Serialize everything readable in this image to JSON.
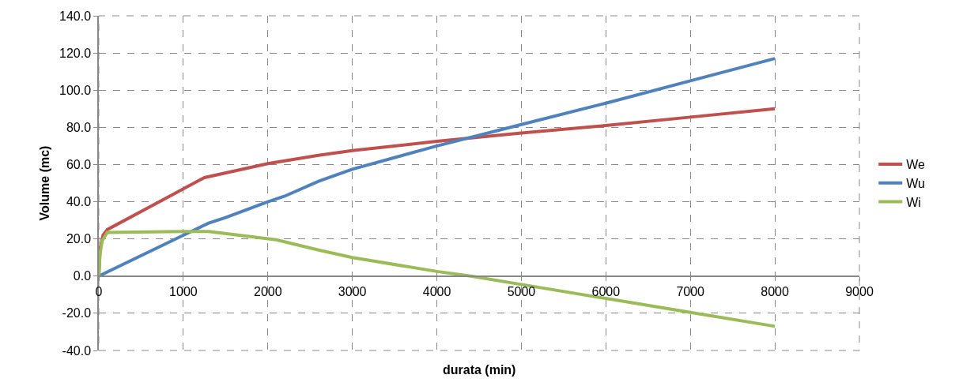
{
  "chart_data": {
    "type": "line",
    "xlabel": "durata (min)",
    "ylabel": "Volume (mc)",
    "xlim": [
      0,
      9000
    ],
    "xticks": [
      0,
      1000,
      2000,
      3000,
      4000,
      5000,
      6000,
      7000,
      8000,
      9000
    ],
    "ylim": [
      -40,
      140
    ],
    "yticks": [
      {
        "value": -40,
        "label": "-40.0"
      },
      {
        "value": -20,
        "label": "-20.0"
      },
      {
        "value": 0,
        "label": "0.0"
      },
      {
        "value": 20,
        "label": "20.0"
      },
      {
        "value": 40,
        "label": "40.0"
      },
      {
        "value": 60,
        "label": "60.0"
      },
      {
        "value": 80,
        "label": "80.0"
      },
      {
        "value": 100,
        "label": "100.0"
      },
      {
        "value": 120,
        "label": "120.0"
      },
      {
        "value": 140,
        "label": "140.0"
      }
    ],
    "grid": true,
    "legend": "right",
    "marker": "none",
    "line_style": "solid",
    "series": [
      {
        "name": "We",
        "color": "#c0504d",
        "x": [
          0,
          15,
          50,
          100,
          1250,
          2000,
          2600,
          3000,
          4000,
          5000,
          6000,
          7000,
          8000
        ],
        "values": [
          0,
          15,
          22,
          25,
          53,
          60.5,
          65,
          67.5,
          72.5,
          77,
          81,
          85.5,
          90
        ]
      },
      {
        "name": "Wu",
        "color": "#4f81bd",
        "x": [
          0,
          1000,
          1300,
          1500,
          2000,
          2200,
          2600,
          3000,
          4000,
          5000,
          6000,
          7000,
          8000
        ],
        "values": [
          0,
          22,
          28.5,
          31.5,
          40,
          43,
          51,
          57.5,
          70,
          81.5,
          93,
          105,
          117
        ]
      },
      {
        "name": "Wi",
        "color": "#9bbb59",
        "x": [
          0,
          15,
          40,
          100,
          1000,
          1300,
          2100,
          2600,
          3000,
          4000,
          4400,
          5000,
          6000,
          7000,
          8000
        ],
        "values": [
          0,
          12,
          19,
          23.5,
          24,
          24,
          19.5,
          14,
          10,
          2.5,
          0,
          -4.5,
          -12,
          -19.5,
          -27
        ]
      }
    ]
  }
}
